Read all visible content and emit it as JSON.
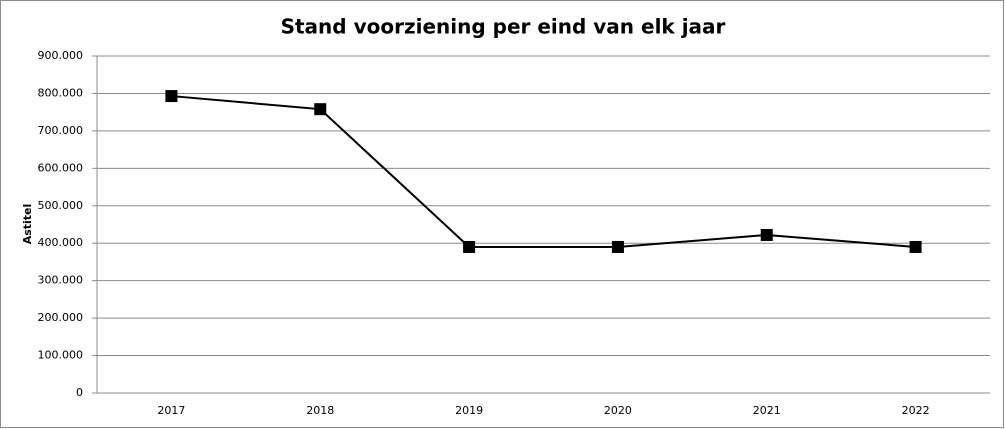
{
  "chart_data": {
    "type": "line",
    "title": "Stand voorziening per eind van elk jaar",
    "y_label": "Astitel",
    "categories": [
      "2017",
      "2018",
      "2019",
      "2020",
      "2021",
      "2022"
    ],
    "series": [
      {
        "name": "Stand voorziening",
        "color": "#000000",
        "values": [
          793000,
          758000,
          390000,
          390000,
          422000,
          390000
        ]
      }
    ],
    "ylim": [
      0,
      900000
    ],
    "yticks": [
      0,
      {
        "value": 100000,
        "label": "100.000"
      },
      {
        "value": 200000,
        "label": "200.000"
      },
      {
        "value": 300000,
        "label": "300.000"
      },
      {
        "value": 400000,
        "label": "400.000"
      },
      {
        "value": 500000,
        "label": "500.000"
      },
      {
        "value": 600000,
        "label": "600.000"
      },
      {
        "value": 700000,
        "label": "700.000"
      },
      {
        "value": 800000,
        "label": "800.000"
      },
      {
        "value": 900000,
        "label": "900.000"
      }
    ],
    "grid": true
  }
}
